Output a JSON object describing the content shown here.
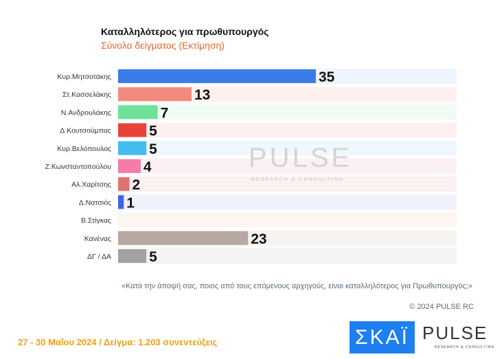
{
  "chart_data": {
    "type": "bar",
    "orientation": "horizontal",
    "title": "Καταλληλότερος για πρωθυπουργός",
    "subtitle": "Σύνολο δείγματος   (Εκτίμηση)",
    "categories": [
      "Κυρ.Μητσοτάκης",
      "Στ.Κασσελάκης",
      "Ν.Ανδρουλάκης",
      "Δ.Κουτσούμπας",
      "Κυρ.Βελόπουλος",
      "Ζ.Κωνσταντοπούλου",
      "Αλ.Χαρίτσης",
      "Δ.Νατσιός",
      "Β.Στίγκας",
      "Κανένας",
      "ΔΓ / ΔΑ"
    ],
    "values": [
      35,
      13,
      7,
      5,
      5,
      4,
      2,
      1,
      null,
      23,
      5
    ],
    "colors": [
      "#3b7de8",
      "#f28b7d",
      "#6ee29a",
      "#e8433a",
      "#41bdf0",
      "#f57ba8",
      "#e07272",
      "#3d66e6",
      "#f5a070",
      "#b8a8a2",
      "#a2a2a2"
    ],
    "bg_colors": [
      "#eef4fe",
      "#fdf1ef",
      "#eefcf3",
      "#fdf0ef",
      "#eef8fe",
      "#fdf0f5",
      "#fcf0f0",
      "#eff2fd",
      "#fdf6ef",
      "#f6f3f2",
      "#f3f3f3"
    ],
    "xlim": [
      0,
      35
    ]
  },
  "question": "«Κατά την άποψή σας, ποιος από τους επόμενους αρχηγούς, είναι καταλληλότερος για Πρωθυπουργός;»",
  "copyright": "© 2024 PULSE RC",
  "footer": "27 - 30  Μαΐου 2024  /  Δείγμα:  1.203 συνεντεύξεις",
  "logos": {
    "skai": "ΣΚΑΪ",
    "pulse": "PULSE",
    "pulse_sub": "RESEARCH & CONSULTING"
  },
  "watermark": {
    "main": "PULSE",
    "sub": "RESEARCH & CONSULTING"
  }
}
